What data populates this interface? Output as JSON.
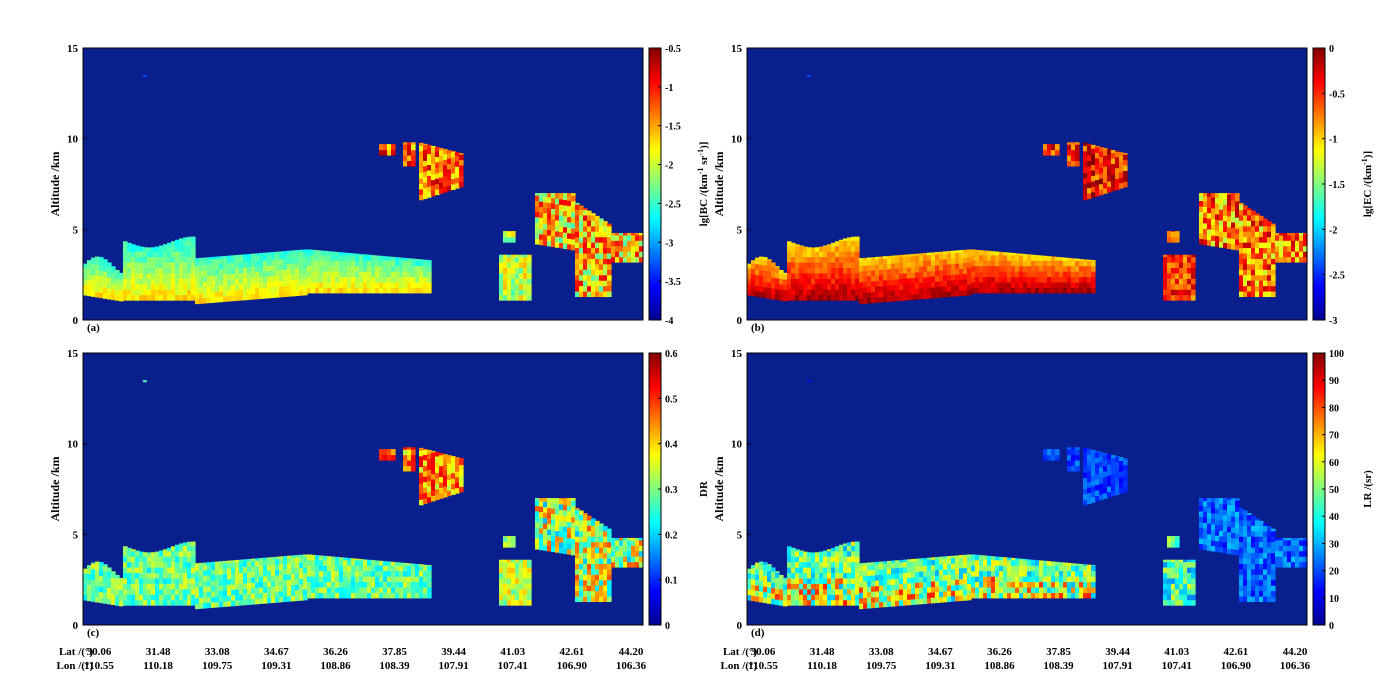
{
  "chart_data": [
    {
      "panel_label": "(a)",
      "type": "heatmap",
      "ylabel": "Altitude /km",
      "ylim": [
        0,
        15
      ],
      "yticks": [
        "0",
        "5",
        "10",
        "15"
      ],
      "colorbar": {
        "label_base": "lg[BC /(km",
        "label_sup1": "-1",
        "label_mid": " sr",
        "label_sup2": "-1",
        "label_end": ")]",
        "range": [
          -4,
          -0.5
        ],
        "ticks": [
          "-0.5",
          "-1",
          "-1.5",
          "-2",
          "-2.5",
          "-3",
          "-3.5",
          "-4"
        ]
      }
    },
    {
      "panel_label": "(b)",
      "type": "heatmap",
      "ylabel": "Altitude /km",
      "ylim": [
        0,
        15
      ],
      "yticks": [
        "0",
        "5",
        "10",
        "15"
      ],
      "colorbar": {
        "label_base": "lg[EC /(km",
        "label_sup1": "-1",
        "label_mid": "",
        "label_sup2": "",
        "label_end": ")]",
        "range": [
          -3,
          0
        ],
        "ticks": [
          "0",
          "-0.5",
          "-1",
          "-1.5",
          "-2",
          "-2.5",
          "-3"
        ]
      }
    },
    {
      "panel_label": "(c)",
      "type": "heatmap",
      "ylabel": "Altitude /km",
      "ylim": [
        0,
        15
      ],
      "yticks": [
        "0",
        "5",
        "10",
        "15"
      ],
      "colorbar": {
        "label_base": "DR",
        "label_sup1": "",
        "label_mid": "",
        "label_sup2": "",
        "label_end": "",
        "range": [
          0,
          0.6
        ],
        "ticks": [
          "0.6",
          "0.5",
          "0.4",
          "0.3",
          "0.2",
          "0.1",
          "0"
        ]
      }
    },
    {
      "panel_label": "(d)",
      "type": "heatmap",
      "ylabel": "Altitude /km",
      "ylim": [
        0,
        15
      ],
      "yticks": [
        "0",
        "5",
        "10",
        "15"
      ],
      "colorbar": {
        "label_base": "LR /(sr)",
        "label_sup1": "",
        "label_mid": "",
        "label_sup2": "",
        "label_end": "",
        "range": [
          0,
          100
        ],
        "ticks": [
          "100",
          "90",
          "80",
          "70",
          "60",
          "50",
          "40",
          "30",
          "20",
          "10",
          "0"
        ]
      }
    }
  ],
  "x_axis": {
    "lat_label": "Lat /(°)",
    "lon_label": "Lon /(°)",
    "lat": [
      "30.06",
      "31.48",
      "33.08",
      "34.67",
      "36.26",
      "37.85",
      "39.44",
      "41.03",
      "42.61",
      "44.20"
    ],
    "lon": [
      "110.55",
      "110.18",
      "109.75",
      "109.31",
      "108.86",
      "108.39",
      "107.91",
      "107.41",
      "106.90",
      "106.36"
    ]
  },
  "colors": {
    "background": "#0a1f8e",
    "colormap": [
      "#00008f",
      "#0000ff",
      "#00ffff",
      "#ffff00",
      "#ff0000",
      "#800000"
    ]
  }
}
